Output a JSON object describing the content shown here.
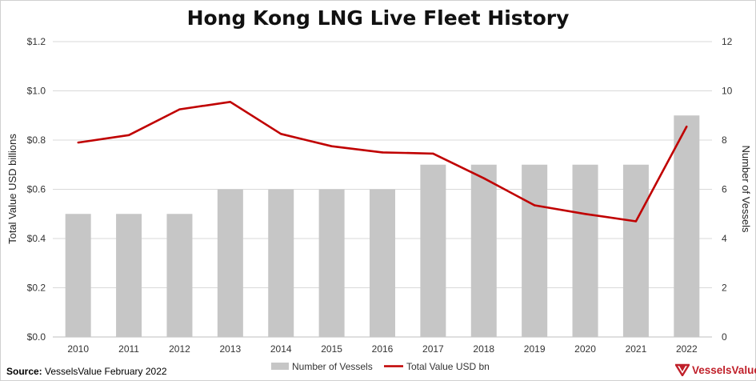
{
  "chart_data": {
    "type": "bar+line",
    "title": "Hong Kong LNG Live Fleet History",
    "categories": [
      "2010",
      "2011",
      "2012",
      "2013",
      "2014",
      "2015",
      "2016",
      "2017",
      "2018",
      "2019",
      "2020",
      "2021",
      "2022"
    ],
    "series": [
      {
        "name": "Number of Vessels",
        "type": "bar",
        "axis": "right",
        "color": "#c6c6c6",
        "values": [
          5,
          5,
          5,
          6,
          6,
          6,
          6,
          7,
          7,
          7,
          7,
          7,
          9
        ]
      },
      {
        "name": "Total Value USD bn",
        "type": "line",
        "axis": "left",
        "color": "#c00000",
        "values": [
          0.79,
          0.82,
          0.925,
          0.955,
          0.825,
          0.775,
          0.75,
          0.745,
          0.645,
          0.535,
          0.5,
          0.47,
          0.855
        ]
      }
    ],
    "ylabel_left": "Total Value USD billions",
    "ylabel_right": "Number of Vessels",
    "ylim_left": [
      0,
      1.2
    ],
    "ylim_right": [
      0,
      12
    ],
    "yticks_left": [
      "$0.0",
      "$0.2",
      "$0.4",
      "$0.6",
      "$0.8",
      "$1.0",
      "$1.2"
    ],
    "yticks_right": [
      "0",
      "2",
      "4",
      "6",
      "8",
      "10",
      "12"
    ],
    "grid": true,
    "legend_position": "bottom"
  },
  "footer": {
    "source_label": "Source:",
    "source_text": " VesselsValue February 2022",
    "brand": "VesselsValue",
    "brand_color": "#c0202a",
    "brand_icon": "vesselsvalue-logo-icon"
  }
}
